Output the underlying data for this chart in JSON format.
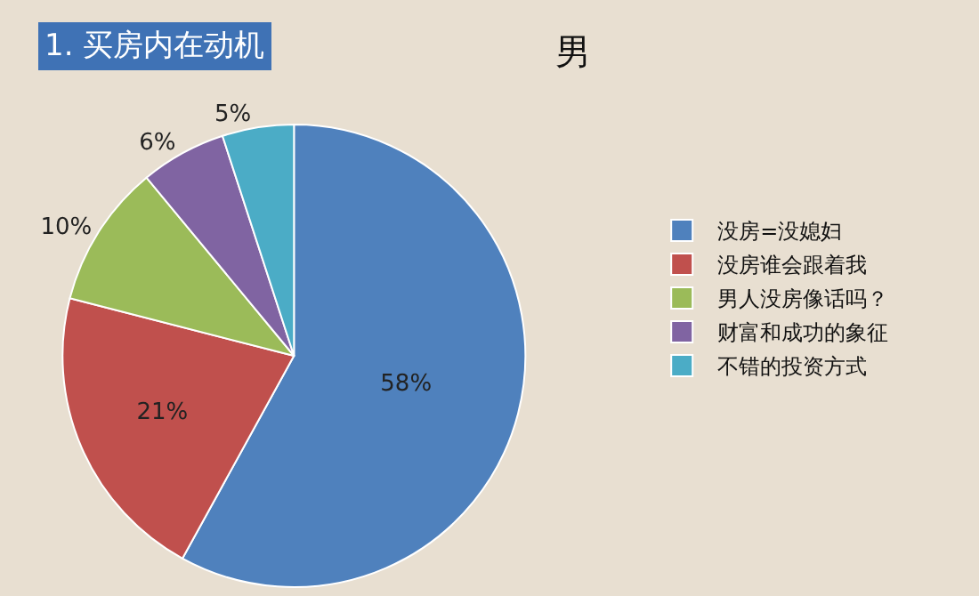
{
  "chart_data": {
    "type": "pie",
    "title": "1. 买房内在动机",
    "subtitle": "男",
    "categories": [
      "没房=没媳妇",
      "没房谁会跟着我",
      "男人没房像话吗？",
      "财富和成功的象征",
      "不错的投资方式"
    ],
    "values": [
      58,
      21,
      10,
      6,
      5
    ],
    "value_labels": [
      "58%",
      "21%",
      "10%",
      "6%",
      "5%"
    ],
    "colors": [
      "#4f81bd",
      "#c0504d",
      "#9bbb59",
      "#8064a2",
      "#4bacc6"
    ],
    "legend": "right"
  }
}
